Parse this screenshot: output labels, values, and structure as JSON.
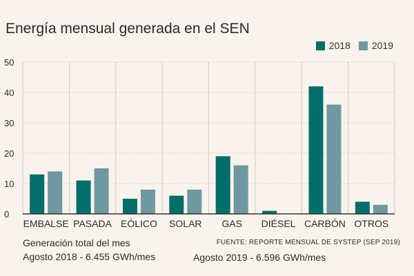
{
  "colors": {
    "s2018": "#036d69",
    "s2019": "#6f98a1",
    "grid": "#cfc9c2",
    "axis": "#333333",
    "background": "#f8f3ec"
  },
  "chart_data": {
    "type": "bar",
    "title": "Energía mensual generada en el SEN",
    "categories": [
      "EMBALSE",
      "PASADA",
      "EÓLICO",
      "SOLAR",
      "GAS",
      "DIÉSEL",
      "CARBÓN",
      "OTROS"
    ],
    "series": [
      {
        "name": "2018",
        "values": [
          13,
          11,
          5,
          6,
          19,
          1,
          42,
          4
        ]
      },
      {
        "name": "2019",
        "values": [
          14,
          15,
          8,
          8,
          16,
          0,
          36,
          3
        ]
      }
    ],
    "yticks": [
      0,
      10,
      20,
      30,
      40,
      50
    ],
    "ylim": [
      0,
      50
    ],
    "xlabel": "",
    "ylabel": "",
    "legend_position": "top-right"
  },
  "footer": {
    "total_label": "Generación total del mes",
    "total_2018": "Agosto 2018 - 6.455 GWh/mes",
    "total_2019": "Agosto 2019 - 6.596 GWh/mes",
    "source": "FUENTE: REPORTE MENSUAL DE SYSTEP (SEP 2019)"
  }
}
